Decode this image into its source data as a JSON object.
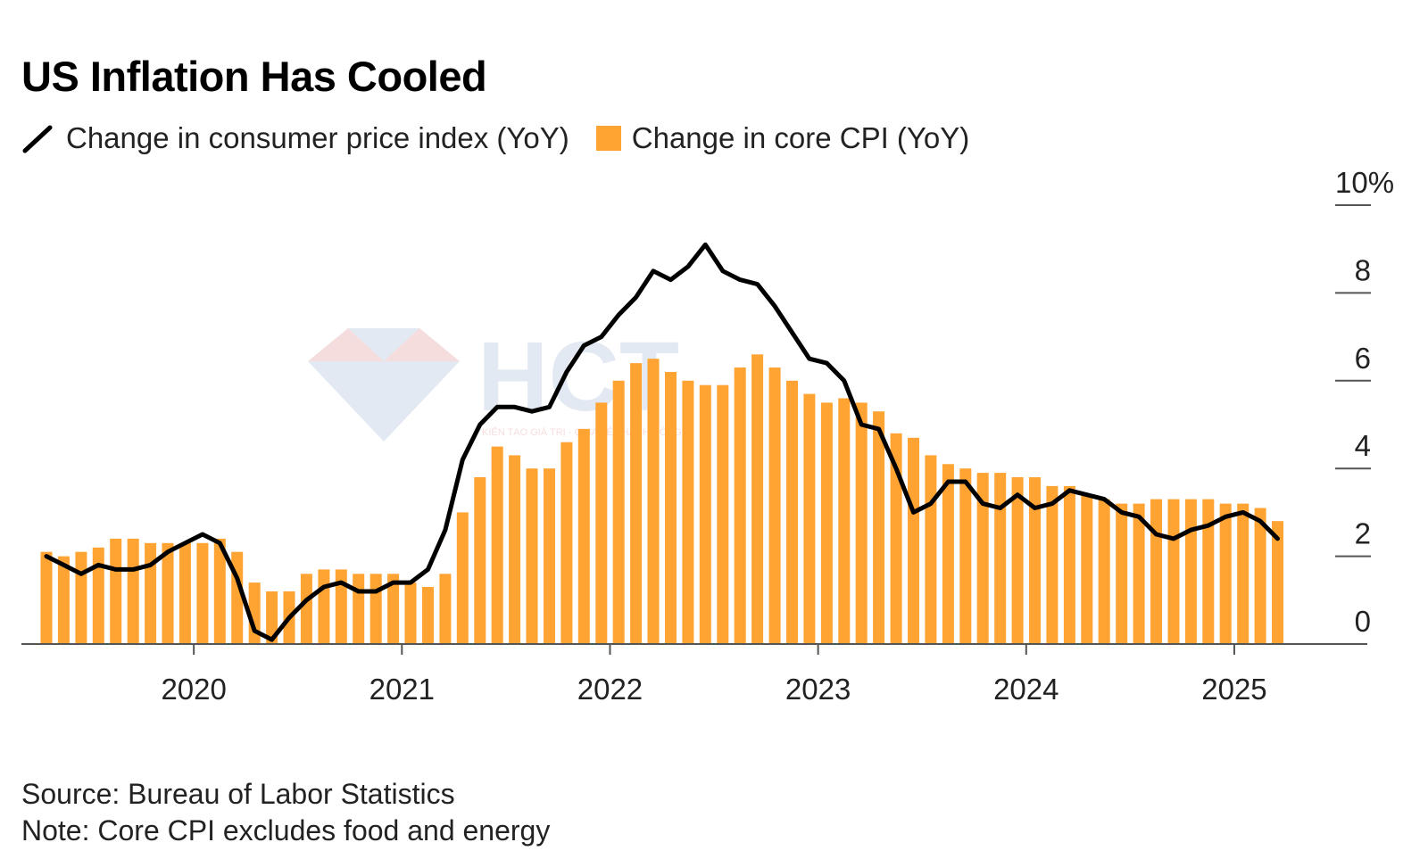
{
  "title": "US Inflation Has Cooled",
  "legend": {
    "cpi_label": "Change in consumer price index (YoY)",
    "core_label": "Change in core CPI (YoY)"
  },
  "footer": {
    "source": "Source: Bureau of Labor Statistics",
    "note": "Note: Core CPI excludes food and energy"
  },
  "watermark": {
    "text": "HCT",
    "tagline": "KIẾN TẠO GIÁ TRỊ - CHIA SẺ THÀNH CÔNG"
  },
  "colors": {
    "bar": "#FFA332",
    "line": "#000000",
    "axis": "#555555"
  },
  "chart_data": {
    "type": "bar",
    "combo": "bar + line",
    "x_label_note": "monthly, Apr 2019 – Mar 2025",
    "start_month": "2019-04",
    "x_ticks": [
      "2020",
      "2021",
      "2022",
      "2023",
      "2024",
      "2025"
    ],
    "y_ticks": [
      "0",
      "2",
      "4",
      "6",
      "8",
      "10%"
    ],
    "ylim": [
      0,
      10
    ],
    "y_axis_position": "right",
    "grid": false,
    "legend_position": "top-left",
    "series": [
      {
        "name": "Change in core CPI (YoY)",
        "type": "bar",
        "values": [
          2.1,
          2.0,
          2.1,
          2.2,
          2.4,
          2.4,
          2.3,
          2.3,
          2.3,
          2.3,
          2.4,
          2.1,
          1.4,
          1.2,
          1.2,
          1.6,
          1.7,
          1.7,
          1.6,
          1.6,
          1.6,
          1.4,
          1.3,
          1.6,
          3.0,
          3.8,
          4.5,
          4.3,
          4.0,
          4.0,
          4.6,
          4.9,
          5.5,
          6.0,
          6.4,
          6.5,
          6.2,
          6.0,
          5.9,
          5.9,
          6.3,
          6.6,
          6.3,
          6.0,
          5.7,
          5.5,
          5.6,
          5.5,
          5.3,
          4.8,
          4.7,
          4.3,
          4.1,
          4.0,
          3.9,
          3.9,
          3.8,
          3.8,
          3.6,
          3.6,
          3.4,
          3.3,
          3.2,
          3.2,
          3.3,
          3.3,
          3.3,
          3.3,
          3.2,
          3.2,
          3.1,
          2.8
        ]
      },
      {
        "name": "Change in consumer price index (YoY)",
        "type": "line",
        "values": [
          2.0,
          1.8,
          1.6,
          1.8,
          1.7,
          1.7,
          1.8,
          2.1,
          2.3,
          2.5,
          2.3,
          1.5,
          0.3,
          0.1,
          0.6,
          1.0,
          1.3,
          1.4,
          1.2,
          1.2,
          1.4,
          1.4,
          1.7,
          2.6,
          4.2,
          5.0,
          5.4,
          5.4,
          5.3,
          5.4,
          6.2,
          6.8,
          7.0,
          7.5,
          7.9,
          8.5,
          8.3,
          8.6,
          9.1,
          8.5,
          8.3,
          8.2,
          7.7,
          7.1,
          6.5,
          6.4,
          6.0,
          5.0,
          4.9,
          4.0,
          3.0,
          3.2,
          3.7,
          3.7,
          3.2,
          3.1,
          3.4,
          3.1,
          3.2,
          3.5,
          3.4,
          3.3,
          3.0,
          2.9,
          2.5,
          2.4,
          2.6,
          2.7,
          2.9,
          3.0,
          2.8,
          2.4
        ]
      }
    ]
  }
}
